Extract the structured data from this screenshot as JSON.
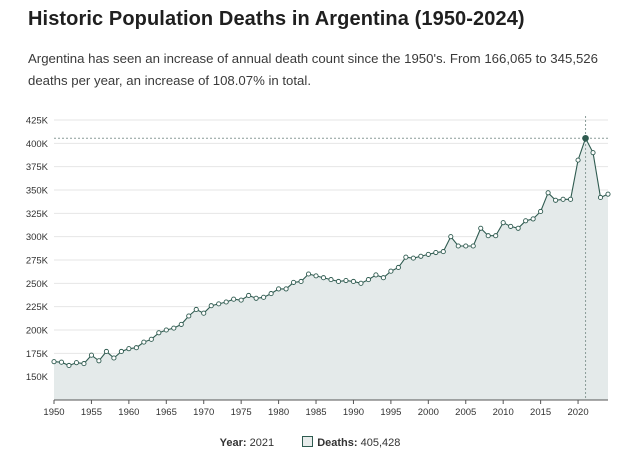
{
  "page": {
    "title": "Historic Population Deaths in Argentina (1950-2024)",
    "subtitle": "Argentina has seen an increase of annual death count since the 1950's. From 166,065 to 345,526 deaths per year, an increase of 108.07% in total."
  },
  "tooltip": {
    "year_label": "Year:",
    "year_value": "2021",
    "deaths_label": "Deaths:",
    "deaths_value": "405,428"
  },
  "colors": {
    "line": "#2f5b50",
    "area": "#e4eaea",
    "grid": "#e6e6e6",
    "marker_fill": "#ffffff",
    "highlight": "#2f5b50"
  },
  "chart_data": {
    "type": "area",
    "title": "Historic Population Deaths in Argentina (1950-2024)",
    "xlabel": "",
    "ylabel": "",
    "series_name": "Deaths",
    "xlim": [
      1950,
      2024
    ],
    "ylim": [
      125000,
      425000
    ],
    "grid": true,
    "x_ticks": [
      1950,
      1955,
      1960,
      1965,
      1970,
      1975,
      1980,
      1985,
      1990,
      1995,
      2000,
      2005,
      2010,
      2015,
      2020
    ],
    "y_ticks": [
      150000,
      175000,
      200000,
      225000,
      250000,
      275000,
      300000,
      325000,
      350000,
      375000,
      400000,
      425000
    ],
    "y_tick_labels": [
      "150K",
      "175K",
      "200K",
      "225K",
      "250K",
      "275K",
      "300K",
      "325K",
      "350K",
      "375K",
      "400K",
      "425K"
    ],
    "highlight": {
      "year": 2021,
      "value": 405428
    },
    "x": [
      1950,
      1951,
      1952,
      1953,
      1954,
      1955,
      1956,
      1957,
      1958,
      1959,
      1960,
      1961,
      1962,
      1963,
      1964,
      1965,
      1966,
      1967,
      1968,
      1969,
      1970,
      1971,
      1972,
      1973,
      1974,
      1975,
      1976,
      1977,
      1978,
      1979,
      1980,
      1981,
      1982,
      1983,
      1984,
      1985,
      1986,
      1987,
      1988,
      1989,
      1990,
      1991,
      1992,
      1993,
      1994,
      1995,
      1996,
      1997,
      1998,
      1999,
      2000,
      2001,
      2002,
      2003,
      2004,
      2005,
      2006,
      2007,
      2008,
      2009,
      2010,
      2011,
      2012,
      2013,
      2014,
      2015,
      2016,
      2017,
      2018,
      2019,
      2020,
      2021,
      2022,
      2023,
      2024
    ],
    "values": [
      166065,
      165500,
      162000,
      165000,
      164000,
      173000,
      167000,
      177000,
      170000,
      177000,
      180000,
      181000,
      187000,
      190000,
      197000,
      200000,
      202000,
      206000,
      215000,
      222000,
      218000,
      226000,
      228000,
      230000,
      233000,
      232000,
      237000,
      234000,
      235000,
      239000,
      244000,
      244000,
      251000,
      252000,
      260000,
      258000,
      256000,
      254000,
      252000,
      253000,
      252000,
      250000,
      254000,
      259000,
      256000,
      263000,
      267000,
      278000,
      277000,
      279000,
      281000,
      283000,
      284000,
      300000,
      290000,
      290000,
      290000,
      309000,
      301000,
      301000,
      315000,
      311000,
      309000,
      317000,
      319000,
      327000,
      347000,
      339000,
      340000,
      340000,
      382000,
      405428,
      390000,
      342000,
      345526
    ]
  }
}
